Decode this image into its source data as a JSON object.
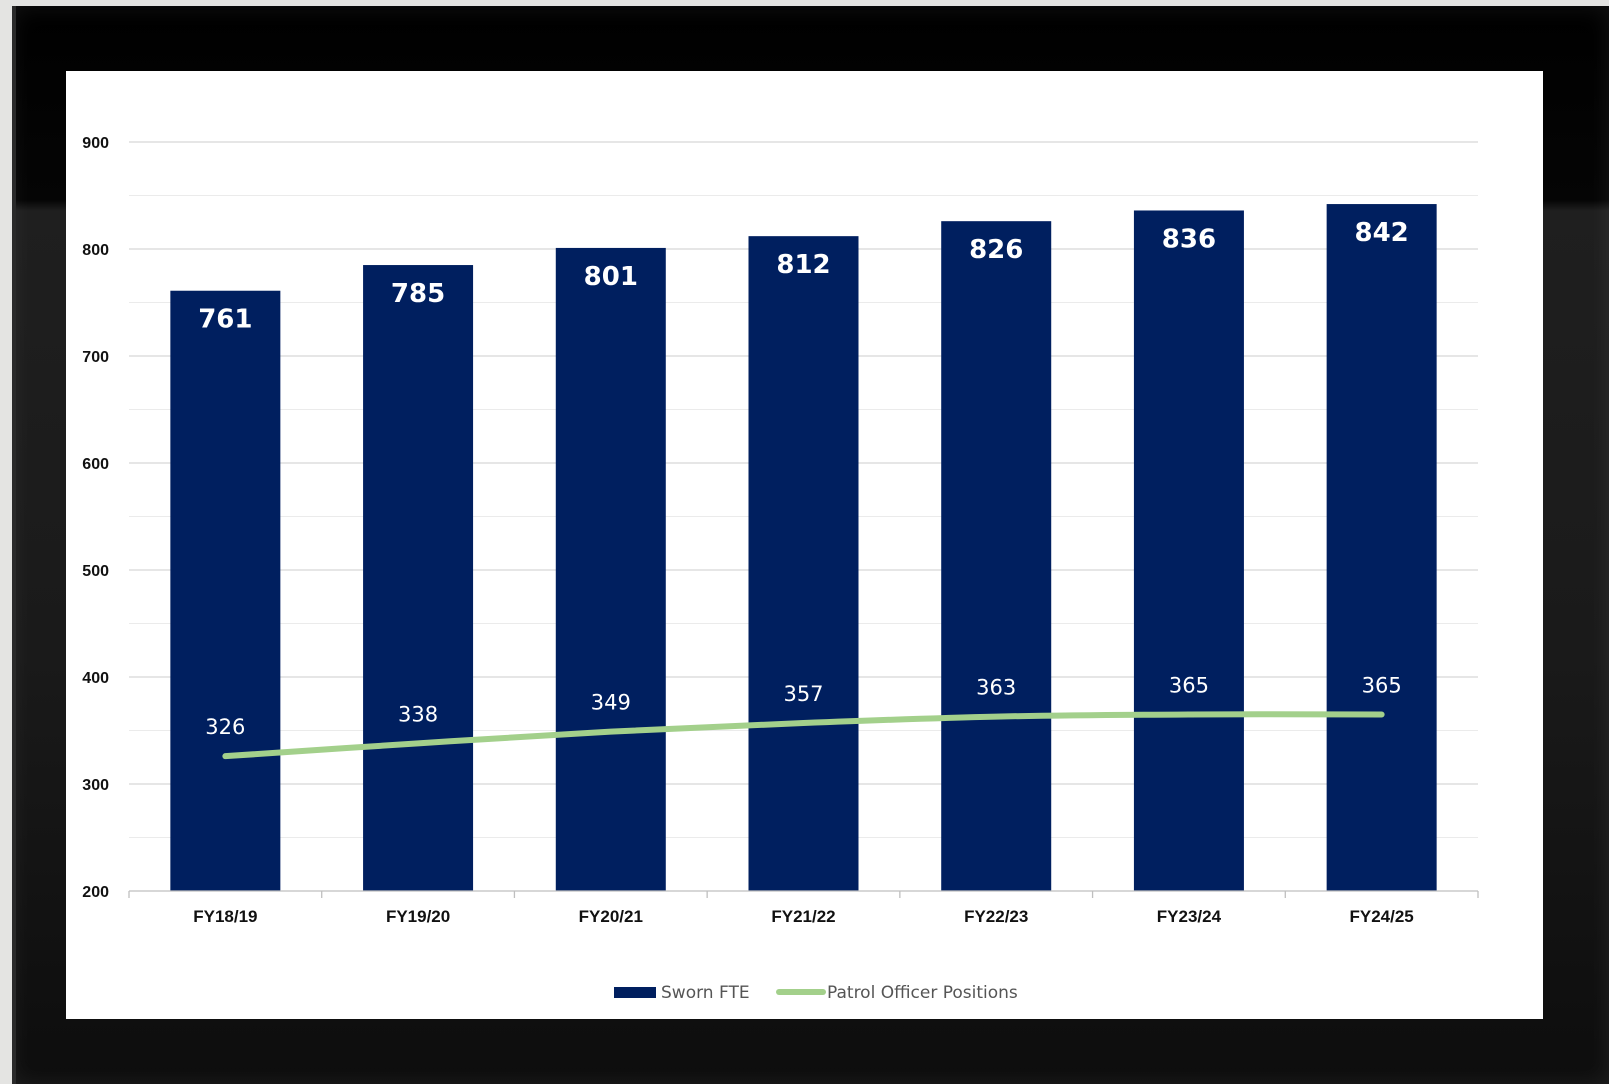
{
  "chart_data": {
    "type": "bar",
    "categories": [
      "FY18/19",
      "FY19/20",
      "FY20/21",
      "FY21/22",
      "FY22/23",
      "FY23/24",
      "FY24/25"
    ],
    "series": [
      {
        "name": "Sworn FTE",
        "type": "bar",
        "color": "#001f5f",
        "values": [
          761,
          785,
          801,
          812,
          826,
          836,
          842
        ]
      },
      {
        "name": "Patrol Officer Positions",
        "type": "line",
        "color": "#a3d08b",
        "values": [
          326,
          338,
          349,
          357,
          363,
          365,
          365
        ]
      }
    ],
    "ylim": [
      200,
      900
    ],
    "yticks": [
      200,
      300,
      400,
      500,
      600,
      700,
      800,
      900
    ],
    "grid": true,
    "legend": "bottom",
    "title": "",
    "xlabel": "",
    "ylabel": ""
  }
}
